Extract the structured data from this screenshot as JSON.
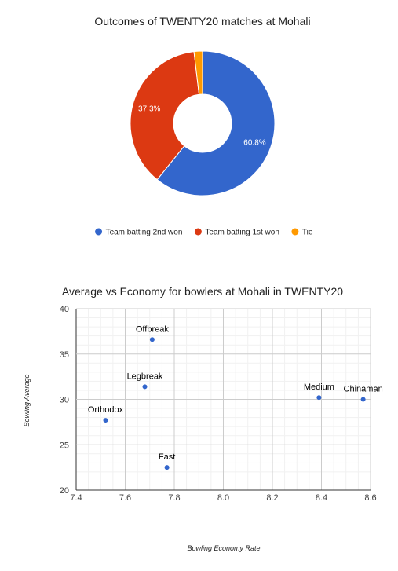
{
  "chart_data": [
    {
      "type": "pie",
      "title": "Outcomes of TWENTY20 matches at Mohali",
      "donut": true,
      "slices": [
        {
          "label": "Team batting 2nd won",
          "value": 60.8,
          "display": "60.8%",
          "color": "#3366cc"
        },
        {
          "label": "Team batting 1st won",
          "value": 37.3,
          "display": "37.3%",
          "color": "#dc3912"
        },
        {
          "label": "Tie",
          "value": 1.9,
          "display": "",
          "color": "#ff9900"
        }
      ],
      "legend_position": "bottom"
    },
    {
      "type": "scatter",
      "title": "Average vs Economy for bowlers at Mohali in TWENTY20",
      "xlabel": "Bowling Economy Rate",
      "ylabel": "Bowling Average",
      "xlim": [
        7.4,
        8.6
      ],
      "ylim": [
        20,
        40
      ],
      "x_ticks": [
        "7.4",
        "7.6",
        "7.8",
        "8.0",
        "8.2",
        "8.4",
        "8.6"
      ],
      "y_ticks": [
        "20",
        "25",
        "30",
        "35",
        "40"
      ],
      "grid": true,
      "point_color": "#3366cc",
      "points": [
        {
          "label": "Orthodox",
          "x": 7.52,
          "y": 27.7
        },
        {
          "label": "Legbreak",
          "x": 7.68,
          "y": 31.4
        },
        {
          "label": "Offbreak",
          "x": 7.71,
          "y": 36.6
        },
        {
          "label": "Fast",
          "x": 7.77,
          "y": 22.5
        },
        {
          "label": "Medium",
          "x": 8.39,
          "y": 30.2
        },
        {
          "label": "Chinaman",
          "x": 8.57,
          "y": 30.0
        }
      ]
    }
  ]
}
